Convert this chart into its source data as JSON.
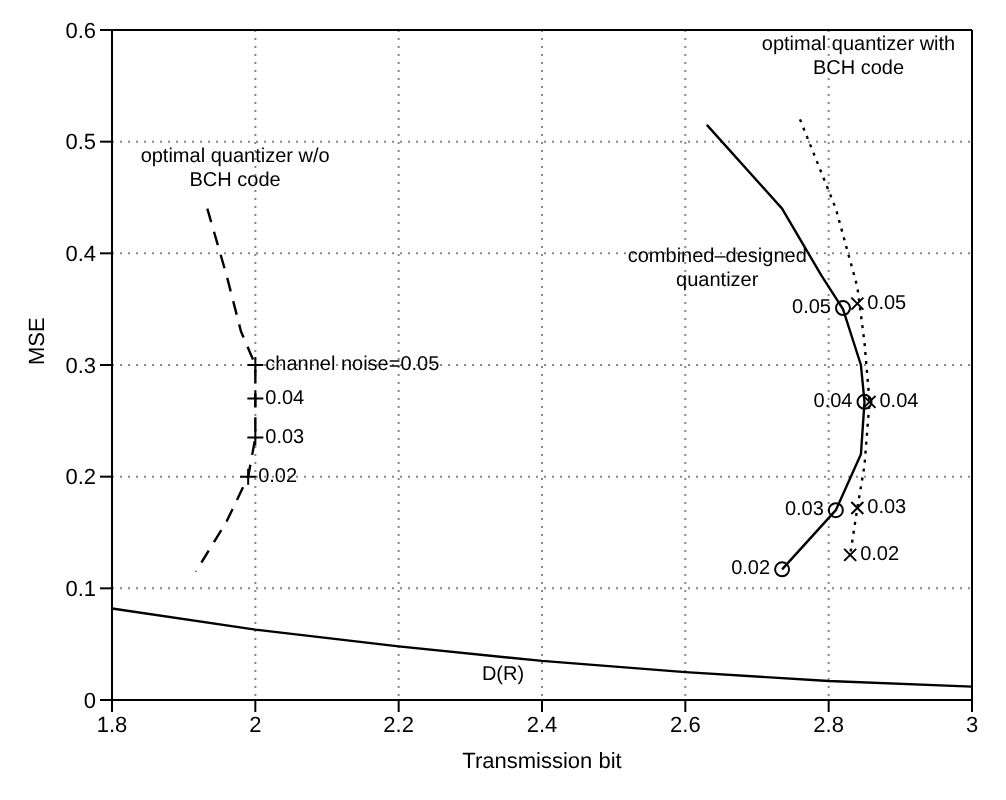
{
  "chart_data": {
    "type": "line",
    "xlabel": "Transmission bit",
    "ylabel": "MSE",
    "xlim": [
      1.8,
      3
    ],
    "ylim": [
      0,
      0.6
    ],
    "xticks": [
      1.8,
      2,
      2.2,
      2.4,
      2.6,
      2.8,
      3
    ],
    "yticks": [
      0,
      0.1,
      0.2,
      0.3,
      0.4,
      0.5,
      0.6
    ],
    "grid": true,
    "legend": false,
    "series": [
      {
        "color": "#000000",
        "line_style": "solid",
        "marker": "none",
        "x": [
          1.8,
          2.0,
          2.2,
          2.4,
          2.6,
          2.8,
          3.0
        ],
        "values": [
          0.082,
          0.063,
          0.048,
          0.035,
          0.025,
          0.017,
          0.012
        ]
      },
      {
        "color": "#000000",
        "line_style": "dashed",
        "marker": "none",
        "x": [
          1.933,
          1.96,
          1.98,
          2.0,
          2.0,
          2.0,
          1.99,
          1.96,
          1.917
        ],
        "values": [
          0.44,
          0.38,
          0.33,
          0.3,
          0.27,
          0.235,
          0.2,
          0.16,
          0.115
        ]
      },
      {
        "type": "scatter",
        "color": "#000000",
        "marker": "cross",
        "x": [
          2.0,
          2.0,
          2.0,
          1.99
        ],
        "values": [
          0.3,
          0.27,
          0.235,
          0.2
        ]
      },
      {
        "color": "#000000",
        "line_style": "solid",
        "marker": "none",
        "x": [
          2.63,
          2.735,
          2.79,
          2.82,
          2.845,
          2.85,
          2.845,
          2.81,
          2.735
        ],
        "values": [
          0.515,
          0.44,
          0.38,
          0.35,
          0.3,
          0.267,
          0.22,
          0.17,
          0.117
        ]
      },
      {
        "type": "scatter",
        "color": "#000000",
        "marker": "circle",
        "x": [
          2.82,
          2.85,
          2.81,
          2.735
        ],
        "values": [
          0.351,
          0.267,
          0.17,
          0.117
        ]
      },
      {
        "color": "#000000",
        "line_style": "dotted",
        "marker": "none",
        "x": [
          2.76,
          2.81,
          2.84,
          2.85,
          2.857,
          2.85,
          2.84,
          2.83
        ],
        "values": [
          0.52,
          0.44,
          0.37,
          0.32,
          0.267,
          0.21,
          0.172,
          0.13
        ]
      },
      {
        "type": "scatter",
        "color": "#000000",
        "marker": "x",
        "x": [
          2.84,
          2.857,
          2.84,
          2.83
        ],
        "values": [
          0.355,
          0.267,
          0.172,
          0.13
        ]
      }
    ],
    "annotations": [
      "optimal quantizer w/o BCH code",
      "optimal quantizer with BCH code",
      "combined–designed quantizer",
      "D(R)",
      {
        "text": "channel noise=0.05",
        "x": 2.0,
        "y": 0.3
      },
      {
        "text": "0.04",
        "x": 2.0,
        "y": 0.27
      },
      {
        "text": "0.03",
        "x": 2.0,
        "y": 0.235
      },
      {
        "text": "0.02",
        "x": 1.99,
        "y": 0.2
      },
      {
        "text": "0.05",
        "x": 2.82,
        "y": 0.351
      },
      {
        "text": "0.04",
        "x": 2.85,
        "y": 0.267
      },
      {
        "text": "0.03",
        "x": 2.81,
        "y": 0.17
      },
      {
        "text": "0.02",
        "x": 2.735,
        "y": 0.117
      },
      {
        "text": "0.05",
        "x": 2.84,
        "y": 0.355
      },
      {
        "text": "0.04",
        "x": 2.857,
        "y": 0.267
      },
      {
        "text": "0.03",
        "x": 2.84,
        "y": 0.172
      },
      {
        "text": "0.02",
        "x": 2.83,
        "y": 0.13
      }
    ]
  }
}
